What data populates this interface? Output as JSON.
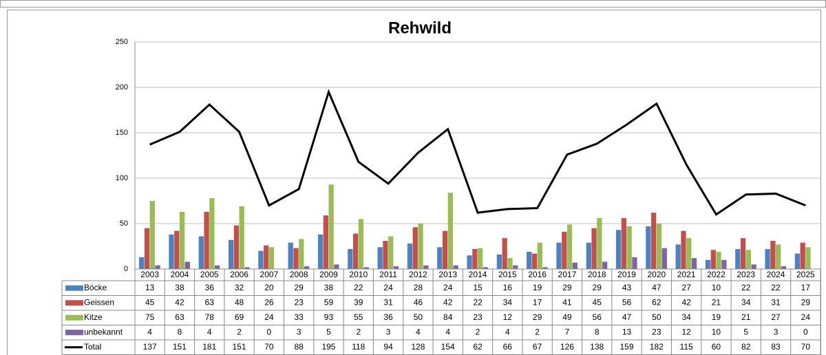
{
  "chart_data": {
    "type": "bar",
    "title": "Rehwild",
    "categories": [
      "2003",
      "2004",
      "2005",
      "2006",
      "2007",
      "2008",
      "2009",
      "2010",
      "2011",
      "2012",
      "2013",
      "2014",
      "2015",
      "2016",
      "2017",
      "2018",
      "2019",
      "2020",
      "2021",
      "2022",
      "2023",
      "2024",
      "2025"
    ],
    "series": [
      {
        "name": "Böcke",
        "color": "#4f81bd",
        "values": [
          13,
          38,
          36,
          32,
          20,
          29,
          38,
          22,
          24,
          28,
          24,
          15,
          16,
          19,
          29,
          29,
          43,
          47,
          27,
          10,
          22,
          22,
          17
        ]
      },
      {
        "name": "Geissen",
        "color": "#c0504d",
        "values": [
          45,
          42,
          63,
          48,
          26,
          23,
          59,
          39,
          31,
          46,
          42,
          22,
          34,
          17,
          41,
          45,
          56,
          62,
          42,
          21,
          34,
          31,
          29
        ]
      },
      {
        "name": "Kitze",
        "color": "#9bbb59",
        "values": [
          75,
          63,
          78,
          69,
          24,
          33,
          93,
          55,
          36,
          50,
          84,
          23,
          12,
          29,
          49,
          56,
          47,
          50,
          34,
          19,
          21,
          27,
          24
        ]
      },
      {
        "name": "unbekannt",
        "color": "#8064a2",
        "values": [
          4,
          8,
          4,
          2,
          0,
          3,
          5,
          2,
          3,
          4,
          4,
          2,
          4,
          2,
          7,
          8,
          13,
          23,
          12,
          10,
          5,
          3,
          0
        ]
      },
      {
        "name": "Total",
        "color": "#000000",
        "type": "line",
        "values": [
          137,
          151,
          181,
          151,
          70,
          88,
          195,
          118,
          94,
          128,
          154,
          62,
          66,
          67,
          126,
          138,
          159,
          182,
          115,
          60,
          82,
          83,
          70
        ]
      }
    ],
    "ylim": [
      0,
      250
    ],
    "yticks": [
      0,
      50,
      100,
      150,
      200,
      250
    ],
    "grid": true,
    "data_table": true
  }
}
